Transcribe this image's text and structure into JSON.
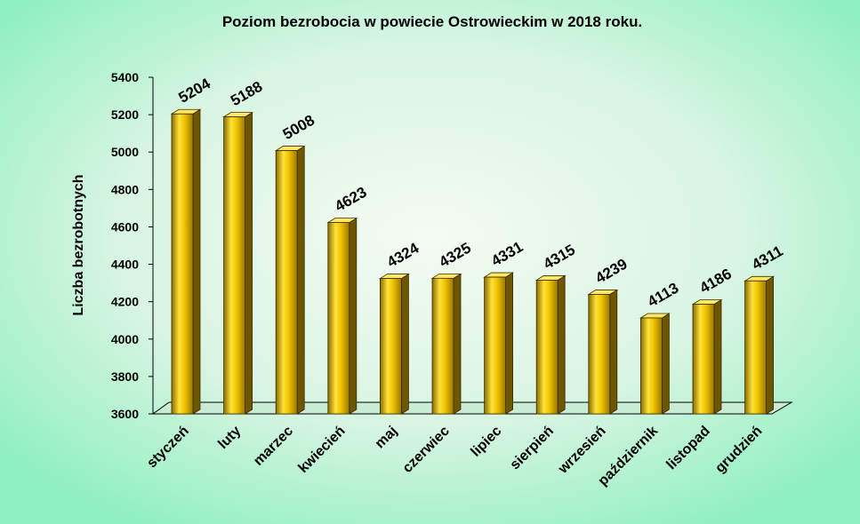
{
  "chart_data": {
    "type": "bar",
    "title": "Poziom bezrobocia w powiecie  Ostrowieckim  w 2018 roku.",
    "y_label": "Liczba bezrobotnych",
    "categories": [
      "styczeń",
      "luty",
      "marzec",
      "kwiecień",
      "maj",
      "czerwiec",
      "lipiec",
      "sierpień",
      "wrzesień",
      "październik",
      "listopad",
      "grudzień"
    ],
    "values": [
      5204,
      5188,
      5008,
      4623,
      4324,
      4325,
      4331,
      4315,
      4239,
      4113,
      4186,
      4311
    ],
    "color": "#e8b800",
    "ylim": [
      3600,
      5400
    ],
    "yticks": [
      3600,
      3800,
      4000,
      4200,
      4400,
      4600,
      4800,
      5000,
      5200,
      5400
    ]
  }
}
